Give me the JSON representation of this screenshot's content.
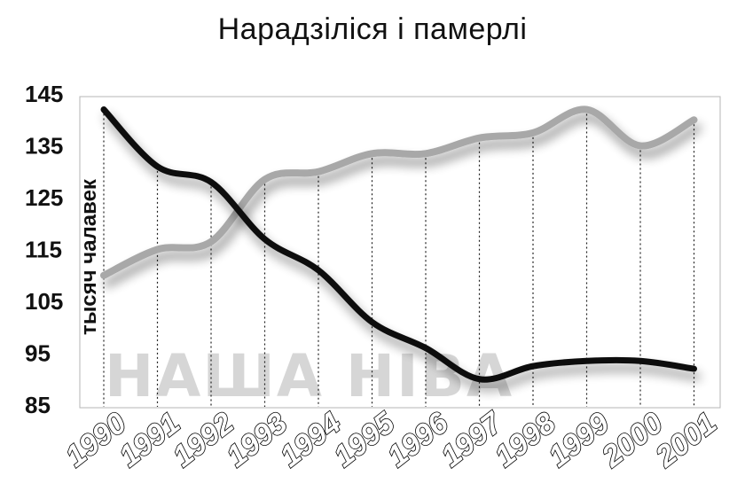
{
  "chart_data": {
    "type": "line",
    "title": "Нарадзіліся і памерлі",
    "ylabel": "тысяч чалавек",
    "xlabel": "",
    "x": [
      "1990",
      "1991",
      "1992",
      "1993",
      "1994",
      "1995",
      "1996",
      "1997",
      "1998",
      "1999",
      "2000",
      "2001"
    ],
    "yticks": [
      85,
      95,
      105,
      115,
      125,
      135,
      145
    ],
    "ylim": [
      85,
      145
    ],
    "series": [
      {
        "color": "#111111",
        "values": [
          142,
          131,
          128,
          117,
          111,
          101,
          96,
          90,
          92.5,
          93.5,
          93.5,
          92
        ]
      },
      {
        "color": "#a8a8a8",
        "values": [
          110,
          115,
          116.5,
          128.5,
          130,
          133.5,
          133.5,
          136.5,
          137.5,
          142,
          135,
          140
        ]
      }
    ],
    "grid": "vertical dotted at each year",
    "watermark": "НАША НІВА"
  }
}
